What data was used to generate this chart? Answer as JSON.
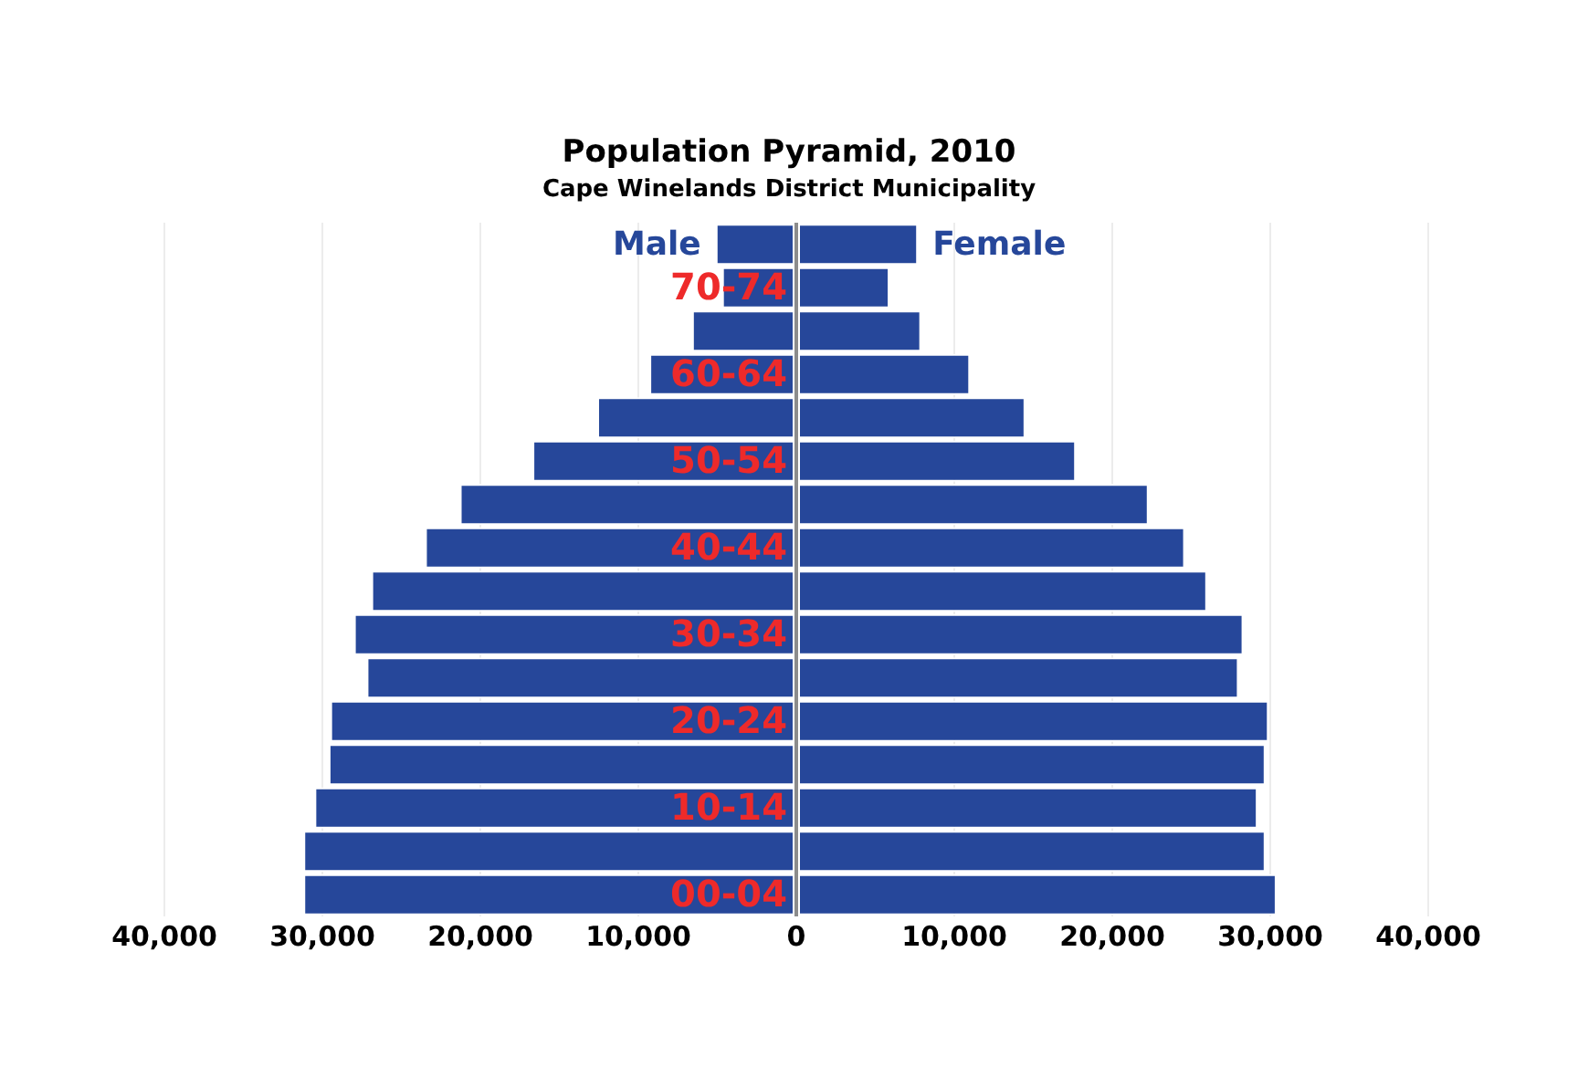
{
  "chart_data": {
    "type": "bar",
    "orientation": "horizontal",
    "stacked": true,
    "title": "Population Pyramid, 2010",
    "subtitle": "Cape Winelands District Municipality",
    "categories": [
      null,
      "70-74",
      null,
      "60-64",
      null,
      "50-54",
      null,
      "40-44",
      null,
      "30-34",
      null,
      "20-24",
      null,
      "10-14",
      null,
      "00-04"
    ],
    "series": [
      {
        "name": "Male",
        "color": "#26479a",
        "values": [
          -5100,
          -4700,
          -6600,
          -9300,
          -12600,
          -16700,
          -21300,
          -23500,
          -26900,
          -28000,
          -27200,
          -29500,
          -29600,
          -30500,
          -31200,
          -31200
        ]
      },
      {
        "name": "Female",
        "color": "#26479a",
        "values": [
          7700,
          5900,
          7900,
          11000,
          14500,
          17700,
          22300,
          24600,
          26000,
          28300,
          28000,
          29900,
          29700,
          29200,
          29700,
          30400
        ]
      }
    ],
    "xlim": [
      -40000,
      40000
    ],
    "xticks": [
      {
        "value": -40000,
        "label": "40,000"
      },
      {
        "value": -30000,
        "label": "30,000"
      },
      {
        "value": -20000,
        "label": "20,000"
      },
      {
        "value": -10000,
        "label": "10,000"
      },
      0,
      {
        "value": 10000,
        "label": "10,000"
      },
      {
        "value": 20000,
        "label": "20,000"
      },
      {
        "value": 30000,
        "label": "30,000"
      },
      {
        "value": 40000,
        "label": "40,000"
      }
    ],
    "grid": "x",
    "legend": false
  }
}
